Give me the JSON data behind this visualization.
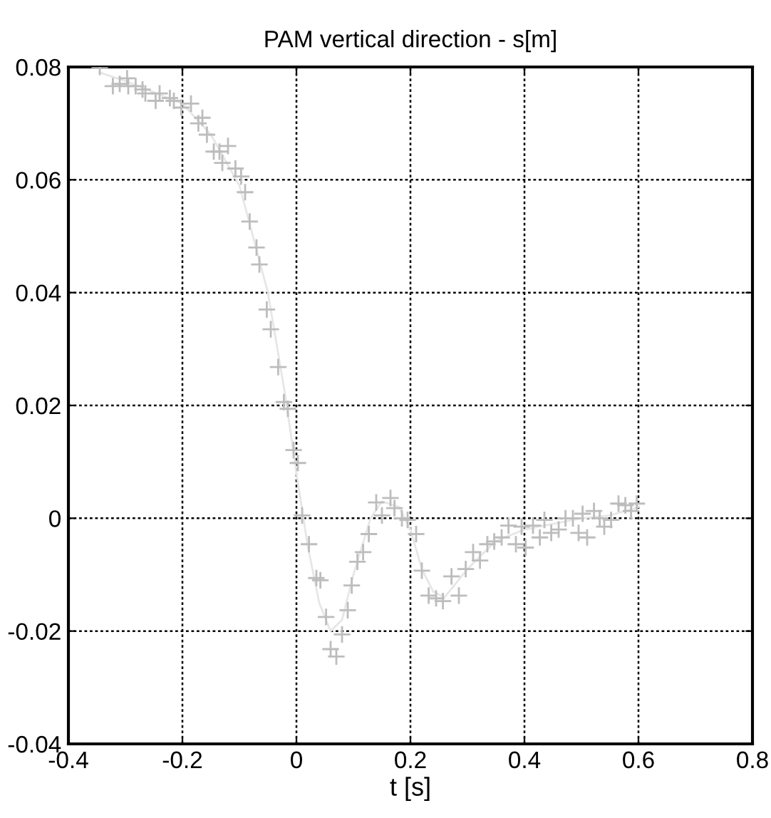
{
  "chart_data": {
    "type": "scatter",
    "title": "PAM vertical direction - s[m]",
    "xlabel": "t [s]",
    "xlim": [
      -0.4,
      0.8
    ],
    "ylim": [
      -0.04,
      0.08
    ],
    "xticks": [
      {
        "value": -0.4,
        "label": "-0.4"
      },
      {
        "value": -0.2,
        "label": "-0.2"
      },
      0,
      0.2,
      0.4,
      0.6,
      0.8
    ],
    "yticks": [
      {
        "value": -0.04,
        "label": "-0.04"
      },
      {
        "value": -0.02,
        "label": "-0.02"
      },
      0,
      0.02,
      0.04,
      0.06,
      0.08
    ],
    "grid": true,
    "legend": false,
    "marker": "cross",
    "series": [
      {
        "color": "#bdbdbd",
        "x": [
          -0.345,
          -0.322,
          -0.31,
          -0.297,
          -0.295,
          -0.282,
          -0.27,
          -0.265,
          -0.247,
          -0.24,
          -0.222,
          -0.215,
          -0.202,
          -0.185,
          -0.172,
          -0.165,
          -0.157,
          -0.145,
          -0.135,
          -0.12,
          -0.13,
          -0.107,
          -0.097,
          -0.09,
          -0.082,
          -0.07,
          -0.065,
          -0.052,
          -0.045,
          -0.032,
          -0.022,
          -0.015,
          -0.005,
          0.0025,
          0.01,
          0.022,
          0.035,
          0.042,
          0.052,
          0.06,
          0.07,
          0.08,
          0.09,
          0.097,
          0.107,
          0.117,
          0.127,
          0.14,
          0.15,
          0.165,
          0.172,
          0.185,
          0.195,
          0.21,
          0.22,
          0.232,
          0.245,
          0.257,
          0.272,
          0.285,
          0.297,
          0.31,
          0.322,
          0.335,
          0.347,
          0.36,
          0.372,
          0.385,
          0.395,
          0.402,
          0.415,
          0.427,
          0.435,
          0.447,
          0.46,
          0.472,
          0.485,
          0.495,
          0.502,
          0.51,
          0.522,
          0.532,
          0.54,
          0.552,
          0.565,
          0.577,
          0.587,
          0.597
        ],
        "values": [
          0.08,
          0.0766,
          0.077,
          0.078,
          0.0766,
          0.0766,
          0.076,
          0.0753,
          0.074,
          0.0753,
          0.0745,
          0.074,
          0.0728,
          0.0735,
          0.07,
          0.071,
          0.068,
          0.065,
          0.065,
          0.066,
          0.063,
          0.062,
          0.0606,
          0.0578,
          0.0526,
          0.048,
          0.045,
          0.037,
          0.0335,
          0.0268,
          0.0206,
          0.0194,
          0.0121,
          0.0098,
          0.0005,
          -0.0046,
          -0.0106,
          -0.011,
          -0.0175,
          -0.0232,
          -0.0245,
          -0.0206,
          -0.0163,
          -0.0119,
          -0.0077,
          -0.006,
          -0.0028,
          0.0028,
          0.0005,
          0.0036,
          0.0018,
          0.0,
          -0.0003,
          -0.0028,
          -0.0093,
          -0.0137,
          -0.0142,
          -0.0147,
          -0.0103,
          -0.0137,
          -0.009,
          -0.006,
          -0.0075,
          -0.0046,
          -0.0041,
          -0.0034,
          -0.0013,
          -0.0046,
          -0.0015,
          -0.0052,
          -0.0013,
          -0.0034,
          -0.0003,
          -0.0026,
          -0.002,
          0.0,
          0.0,
          -0.0026,
          0.0008,
          -0.0034,
          0.0013,
          0.0,
          -0.0015,
          -0.0003,
          0.0026,
          0.0023,
          0.0013,
          0.0026
        ]
      },
      {
        "type": "line",
        "color": "#e6e6e6",
        "marker": "none",
        "line_style": "solid",
        "x": [
          -0.345,
          -0.3,
          -0.2,
          -0.15,
          -0.1,
          -0.05,
          -0.02,
          0.0,
          0.02,
          0.04,
          0.06,
          0.08,
          0.1,
          0.13,
          0.15,
          0.18,
          0.2,
          0.22,
          0.24,
          0.26,
          0.3,
          0.35,
          0.4,
          0.45,
          0.5,
          0.55,
          0.6
        ],
        "values": [
          0.079,
          0.0775,
          0.0735,
          0.068,
          0.059,
          0.04,
          0.022,
          0.008,
          -0.005,
          -0.015,
          -0.02,
          -0.018,
          -0.01,
          0.0,
          0.003,
          0.002,
          -0.002,
          -0.009,
          -0.013,
          -0.014,
          -0.009,
          -0.004,
          -0.002,
          -0.001,
          0.0,
          0.0005,
          0.002
        ]
      }
    ]
  }
}
